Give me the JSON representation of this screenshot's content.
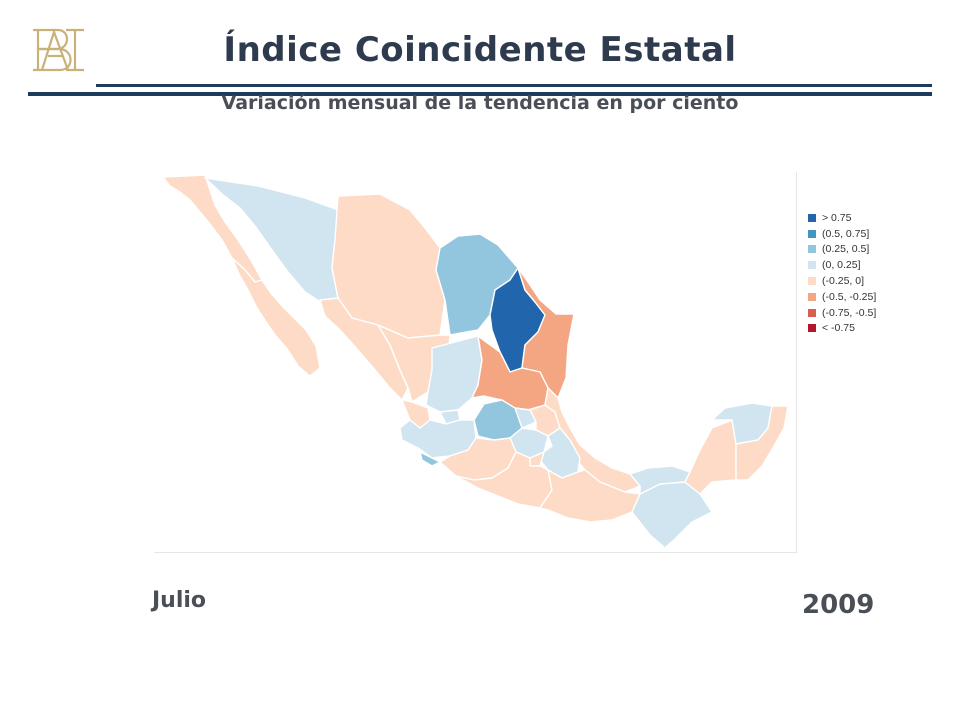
{
  "header": {
    "title": "Índice Coincidente Estatal",
    "subtitle": "Variación mensual de la tendencia en por ciento",
    "logo_icon": "banxico-monogram-icon"
  },
  "colors": {
    "gt_075": "#2166ac",
    "r_050_075": "#4393c3",
    "r_025_050": "#92c5de",
    "r_000_025": "#d1e5f0",
    "r_m025_000": "#fddbc7",
    "r_m050_m025": "#f4a582",
    "r_m075_m050": "#d6604d",
    "lt_m075": "#b2182b",
    "accent": "#1f3b5c",
    "logo": "#c9b27a"
  },
  "legend": {
    "items": [
      {
        "label": "> 0.75",
        "color": "#2166ac"
      },
      {
        "label": "(0.5, 0.75]",
        "color": "#4393c3"
      },
      {
        "label": "(0.25, 0.5]",
        "color": "#92c5de"
      },
      {
        "label": "(0, 0.25]",
        "color": "#d1e5f0"
      },
      {
        "label": "(-0.25, 0]",
        "color": "#fddbc7"
      },
      {
        "label": "(-0.5, -0.25]",
        "color": "#f4a582"
      },
      {
        "label": "(-0.75, -0.5]",
        "color": "#d6604d"
      },
      {
        "label": "< -0.75",
        "color": "#b2182b"
      }
    ]
  },
  "footer": {
    "month": "Julio",
    "year": "2009"
  }
}
